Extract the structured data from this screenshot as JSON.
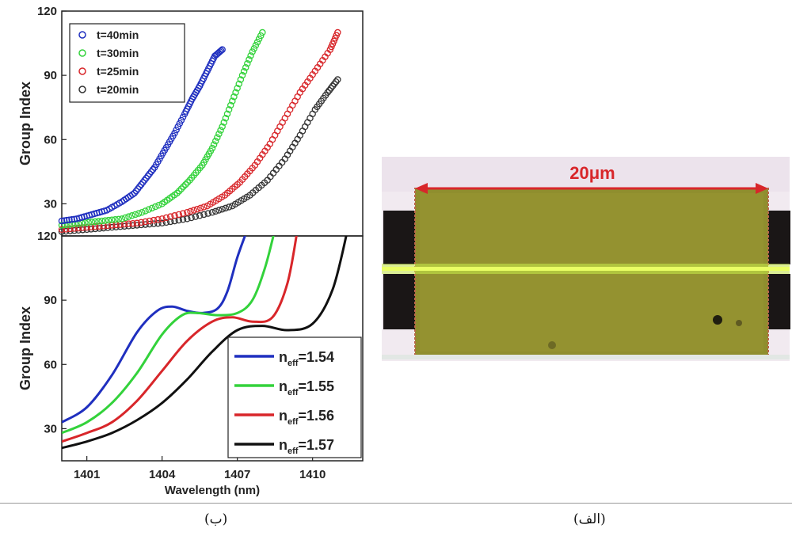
{
  "captions": {
    "left": "(ب)",
    "right": "(الف)"
  },
  "micrograph": {
    "scale_label": "20μm",
    "arrow_color": "#d8262a"
  },
  "chart_data": [
    {
      "type": "scatter",
      "ylabel": "Group Index",
      "ylim": [
        15,
        120
      ],
      "yticks": [
        30,
        60,
        90,
        120
      ],
      "xlim": [
        1400,
        1412
      ],
      "legend_position": "top-left",
      "series": [
        {
          "name": "t=40min",
          "color": "#1f2fbf",
          "x": [
            1400,
            1400.6,
            1401.2,
            1401.8,
            1402.4,
            1402.9,
            1403.3,
            1403.7,
            1404.1,
            1404.5,
            1404.9,
            1405.2,
            1405.5,
            1405.8,
            1406.1,
            1406.4
          ],
          "y": [
            22,
            23,
            25,
            27,
            31,
            35,
            41,
            47,
            55,
            63,
            72,
            79,
            85,
            92,
            99,
            102
          ]
        },
        {
          "name": "t=30min",
          "color": "#33d23b",
          "x": [
            1400,
            1400.8,
            1401.6,
            1402.4,
            1403.2,
            1404,
            1404.6,
            1405.1,
            1405.6,
            1406,
            1406.4,
            1406.8,
            1407.2,
            1407.6,
            1408
          ],
          "y": [
            20,
            21,
            22,
            23,
            26,
            30,
            35,
            41,
            48,
            56,
            66,
            78,
            90,
            101,
            110
          ]
        },
        {
          "name": "t=25min",
          "color": "#d8262a",
          "x": [
            1400,
            1401,
            1402,
            1403,
            1404,
            1405,
            1405.8,
            1406.5,
            1407.1,
            1407.7,
            1408.3,
            1408.9,
            1409.5,
            1410.1,
            1410.7,
            1411
          ],
          "y": [
            18,
            19,
            20,
            21,
            23,
            26,
            29,
            34,
            40,
            48,
            58,
            70,
            82,
            92,
            102,
            110
          ]
        },
        {
          "name": "t=20min",
          "color": "#333333",
          "x": [
            1400,
            1401,
            1402,
            1403,
            1404,
            1405,
            1406,
            1406.8,
            1407.5,
            1408.2,
            1408.9,
            1409.5,
            1410.1,
            1410.6,
            1411
          ],
          "y": [
            17,
            18,
            19,
            20,
            21,
            23,
            26,
            29,
            34,
            41,
            51,
            62,
            74,
            82,
            88
          ]
        }
      ]
    },
    {
      "type": "line",
      "xlabel": "Wavelength (nm)",
      "ylabel": "Group Index",
      "xlim": [
        1400,
        1412
      ],
      "xticks": [
        1401,
        1404,
        1407,
        1410
      ],
      "ylim": [
        15,
        120
      ],
      "yticks": [
        30,
        60,
        90,
        120
      ],
      "legend_position": "bottom-right",
      "series": [
        {
          "name": "n",
          "sub": "eff",
          "suffix": "=1.54",
          "color": "#1f2fbf",
          "x": [
            1400,
            1401,
            1402,
            1403,
            1403.8,
            1404.4,
            1405,
            1405.6,
            1406.2,
            1406.6,
            1407,
            1407.4
          ],
          "y": [
            33,
            40,
            55,
            75,
            85,
            87,
            85,
            84,
            86,
            94,
            110,
            123
          ]
        },
        {
          "name": "n",
          "sub": "eff",
          "suffix": "=1.55",
          "color": "#33d23b",
          "x": [
            1400,
            1401,
            1402,
            1403,
            1404,
            1404.8,
            1405.4,
            1406.2,
            1407,
            1407.6,
            1408.1,
            1408.5
          ],
          "y": [
            28,
            33,
            42,
            56,
            74,
            83,
            84,
            83,
            84,
            90,
            105,
            123
          ]
        },
        {
          "name": "n",
          "sub": "eff",
          "suffix": "=1.56",
          "color": "#d8262a",
          "x": [
            1400,
            1401,
            1402,
            1403,
            1404,
            1405,
            1406,
            1406.8,
            1407.6,
            1408.4,
            1409,
            1409.4
          ],
          "y": [
            24,
            28,
            33,
            43,
            57,
            71,
            80,
            82,
            80,
            82,
            98,
            123
          ]
        },
        {
          "name": "n",
          "sub": "eff",
          "suffix": "=1.57",
          "color": "#111111",
          "x": [
            1400,
            1401,
            1402,
            1403,
            1404,
            1405,
            1406,
            1407,
            1408,
            1409,
            1410,
            1410.8,
            1411.4
          ],
          "y": [
            21,
            24,
            28,
            34,
            42,
            53,
            66,
            76,
            78,
            76,
            79,
            95,
            123
          ]
        }
      ]
    }
  ]
}
